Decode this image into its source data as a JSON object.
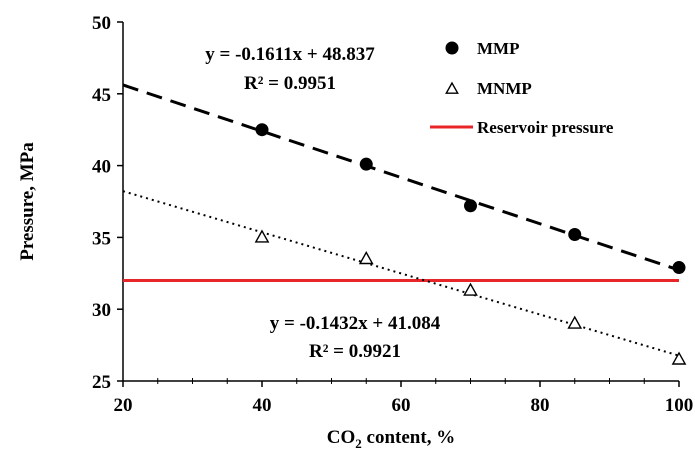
{
  "chart_data": {
    "type": "scatter",
    "title": "",
    "xlabel_parts": [
      "CO",
      "2",
      " content, %"
    ],
    "ylabel": "Pressure, MPa",
    "xlim": [
      20,
      100
    ],
    "ylim": [
      25,
      50
    ],
    "xticks": [
      20,
      40,
      60,
      80,
      100
    ],
    "yticks": [
      25,
      30,
      35,
      40,
      45,
      50
    ],
    "grid": false,
    "legend_position": "top-right",
    "series": [
      {
        "name": "MMP",
        "marker": "circle",
        "color": "#000000",
        "x": [
          40,
          55,
          70,
          85,
          100
        ],
        "y": [
          42.5,
          40.1,
          37.2,
          35.2,
          32.9
        ],
        "trendline": {
          "slope": -0.1611,
          "intercept": 48.837,
          "style": "dashed",
          "equation": "y = -0.1611x + 48.837",
          "r2": "R² = 0.9951"
        }
      },
      {
        "name": "MNMP",
        "marker": "triangle-open",
        "color": "#000000",
        "x": [
          40,
          55,
          70,
          85,
          100
        ],
        "y": [
          35.0,
          33.5,
          31.3,
          29.0,
          26.5
        ],
        "trendline": {
          "slope": -0.1432,
          "intercept": 41.084,
          "style": "dotted",
          "equation": "y = -0.1432x + 41.084",
          "r2": "R² = 0.9921"
        }
      },
      {
        "name": "Reservoir pressure",
        "type": "hline",
        "color": "#e8262a",
        "y": 32
      }
    ]
  }
}
